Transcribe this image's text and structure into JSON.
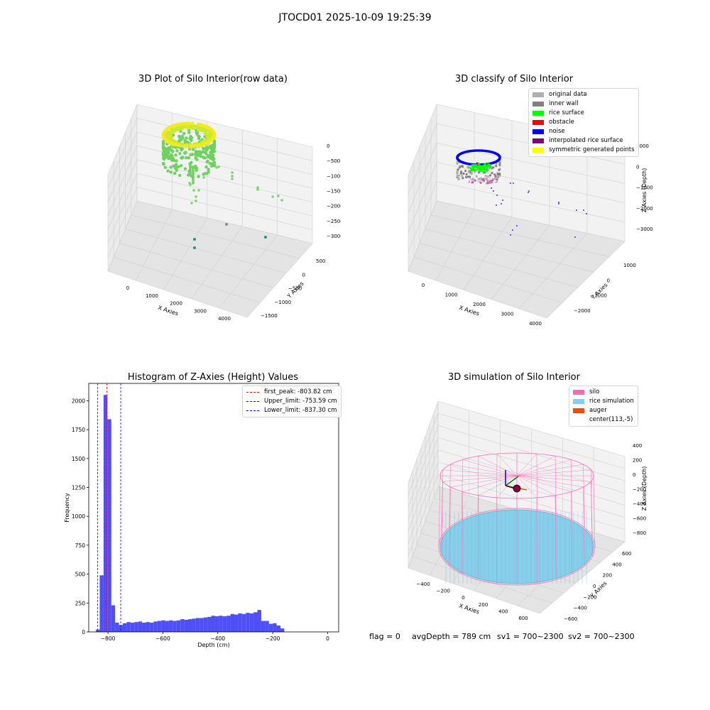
{
  "figure": {
    "suptitle": "JTOCD01 2025-10-09 19:25:39",
    "footer": {
      "flag": "flag = 0",
      "avg_depth": "avgDepth = 789 cm",
      "sv1": "sv1 = 700~2300",
      "sv2": "sv2 = 700~2300"
    }
  },
  "chart_data": [
    {
      "type": "scatter",
      "dimension": "3d",
      "title": "3D Plot of Silo Interior(row data)",
      "xlabel": "X Axies",
      "ylabel": "Y Axies",
      "zlabel": "Z Axies (Depth)",
      "x_ticks": [
        "0",
        "1000",
        "2000",
        "3000",
        "4000"
      ],
      "y_ticks": [
        "500",
        "0",
        "−500",
        "−1000",
        "−1500"
      ],
      "z_ticks": [
        "0",
        "−500",
        "−1000",
        "−1500",
        "−2000",
        "−2500",
        "−3000"
      ],
      "colors": {
        "surface": "#cfe82a",
        "rim": "#f2ea22",
        "body": "#6fd160",
        "deep": "#2a9180"
      }
    },
    {
      "type": "scatter",
      "dimension": "3d",
      "title": "3D classify of Silo Interior",
      "xlabel": "X Axies",
      "ylabel": "Y Axies",
      "zlabel": "Z Axies (Depth)",
      "x_ticks": [
        "0",
        "1000",
        "2000",
        "3000",
        "4000"
      ],
      "y_ticks": [
        "1000",
        "0",
        "−1000",
        "−2000"
      ],
      "z_ticks": [
        "1000",
        "0",
        "−1000",
        "−2000",
        "−3000"
      ],
      "legend": [
        {
          "label": "original data",
          "color": "#b0b0b0"
        },
        {
          "label": "inner wall",
          "color": "#808080"
        },
        {
          "label": "rice surface",
          "color": "#00ff00"
        },
        {
          "label": "obstacle",
          "color": "#ff0000"
        },
        {
          "label": "noise",
          "color": "#0000ff"
        },
        {
          "label": "interpolated rice surface",
          "color": "#800080"
        },
        {
          "label": "symmetric generated points",
          "color": "#ffff00"
        }
      ]
    },
    {
      "type": "bar",
      "title": "Histogram of Z-Axies (Height) Values",
      "xlabel": "Depth (cm)",
      "ylabel": "Frequency",
      "xlim": [
        -870,
        40
      ],
      "ylim": [
        0,
        2150
      ],
      "x_ticks": [
        -800,
        -600,
        -400,
        -200,
        0
      ],
      "x_tick_labels": [
        "−800",
        "−600",
        "−400",
        "−200",
        "0"
      ],
      "y_ticks": [
        0,
        250,
        500,
        750,
        1000,
        1250,
        1500,
        1750,
        2000
      ],
      "bar_color": "#4f4ff7",
      "bin_width": 14,
      "bins_start": -844,
      "values": [
        20,
        490,
        2050,
        1840,
        230,
        80,
        60,
        75,
        85,
        80,
        85,
        90,
        80,
        85,
        80,
        90,
        95,
        100,
        95,
        100,
        95,
        100,
        110,
        105,
        110,
        115,
        120,
        120,
        125,
        130,
        140,
        135,
        140,
        135,
        140,
        155,
        150,
        160,
        155,
        165,
        160,
        170,
        190,
        95,
        95,
        70,
        75,
        55,
        30
      ],
      "vlines": [
        {
          "label": "first_peak: -803.82 cm",
          "x": -803.82,
          "color": "#ff0000"
        },
        {
          "label": "Upper_limit: -753.59 cm",
          "x": -753.59,
          "color": "#0000ff"
        },
        {
          "label": "Lower_limit: -837.30 cm",
          "x": -837.3,
          "color": "#0000ff"
        }
      ]
    },
    {
      "type": "scatter",
      "dimension": "3d",
      "title": "3D simulation of Silo Interior",
      "xlabel": "X Axies",
      "ylabel": "Y Axies",
      "zlabel": "Z Axies (Depth)",
      "x_ticks": [
        "−400",
        "−200",
        "0",
        "200",
        "400",
        "600"
      ],
      "y_ticks": [
        "600",
        "400",
        "200",
        "0",
        "−200",
        "−400",
        "−600"
      ],
      "z_ticks": [
        "400",
        "200",
        "0",
        "−200",
        "−400",
        "−600",
        "−800"
      ],
      "legend": [
        {
          "label": "silo",
          "color": "#ff69b4"
        },
        {
          "label": "rice simulation",
          "color": "#87ceeb"
        },
        {
          "label": "auger",
          "color": "#ff4500"
        },
        {
          "label": "center(113,-5)",
          "color": ""
        }
      ]
    }
  ]
}
